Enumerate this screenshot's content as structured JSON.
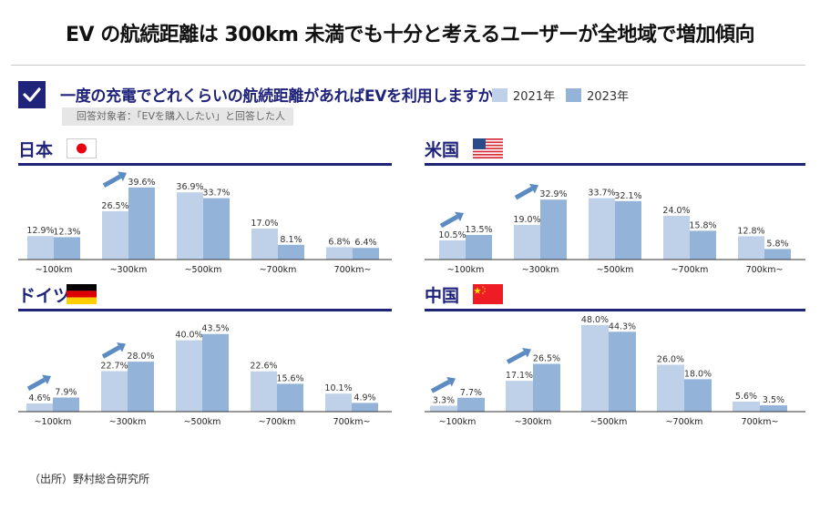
{
  "title": "EV の航続距離は 300km 未満でも十分と考えるユーザーが全地域で増加傾向",
  "question": "一度の充電でどれくらいの航続距離があればEVを利用しますか？",
  "respondents_note": "回答対象者：「EVを購入したい」と回答した人",
  "source": "（出所）野村総合研究所",
  "legend": [
    {
      "label": "2021年",
      "color": "#bfd1e8"
    },
    {
      "label": "2023年",
      "color": "#94b3d8"
    }
  ],
  "colors": {
    "accent": "#1f237a",
    "arrow": "#5b8bc2",
    "series_2021": "#bfd1e8",
    "series_2023": "#94b3d8"
  },
  "chart_data": [
    {
      "type": "bar",
      "title": "日本",
      "flag": "japan",
      "categories": [
        "~100km",
        "~300km",
        "~500km",
        "~700km",
        "700km~"
      ],
      "series": [
        {
          "name": "2021年",
          "values": [
            12.9,
            26.5,
            36.9,
            17.0,
            6.8
          ],
          "labels": [
            "12.9%",
            "26.5%",
            "36.9%",
            "17.0%",
            "6.8%"
          ]
        },
        {
          "name": "2023年",
          "values": [
            12.3,
            39.6,
            33.7,
            8.1,
            6.4
          ],
          "labels": [
            "12.3%",
            "39.6%",
            "33.7%",
            "8.1%",
            "6.4%"
          ]
        }
      ],
      "increase_arrows": [
        "~300km"
      ],
      "ylim": [
        0,
        50
      ],
      "xlabel": "",
      "ylabel": "",
      "grid": false
    },
    {
      "type": "bar",
      "title": "米国",
      "flag": "usa",
      "categories": [
        "~100km",
        "~300km",
        "~500km",
        "~700km",
        "700km~"
      ],
      "series": [
        {
          "name": "2021年",
          "values": [
            10.5,
            19.0,
            33.7,
            24.0,
            12.8
          ],
          "labels": [
            "10.5%",
            "19.0%",
            "33.7%",
            "24.0%",
            "12.8%"
          ]
        },
        {
          "name": "2023年",
          "values": [
            13.5,
            32.9,
            32.1,
            15.8,
            5.8
          ],
          "labels": [
            "13.5%",
            "32.9%",
            "32.1%",
            "15.8%",
            "5.8%"
          ]
        }
      ],
      "increase_arrows": [
        "~100km",
        "~300km"
      ],
      "ylim": [
        0,
        50
      ],
      "xlabel": "",
      "ylabel": "",
      "grid": false
    },
    {
      "type": "bar",
      "title": "ドイツ",
      "flag": "germany",
      "categories": [
        "~100km",
        "~300km",
        "~500km",
        "~700km",
        "700km~"
      ],
      "series": [
        {
          "name": "2021年",
          "values": [
            4.6,
            22.7,
            40.0,
            22.6,
            10.1
          ],
          "labels": [
            "4.6%",
            "22.7%",
            "40.0%",
            "22.6%",
            "10.1%"
          ]
        },
        {
          "name": "2023年",
          "values": [
            7.9,
            28.0,
            43.5,
            15.6,
            4.9
          ],
          "labels": [
            "7.9%",
            "28.0%",
            "43.5%",
            "15.6%",
            "4.9%"
          ]
        }
      ],
      "increase_arrows": [
        "~100km",
        "~300km"
      ],
      "ylim": [
        0,
        50
      ],
      "xlabel": "",
      "ylabel": "",
      "grid": false
    },
    {
      "type": "bar",
      "title": "中国",
      "flag": "china",
      "categories": [
        "~100km",
        "~300km",
        "~500km",
        "~700km",
        "700km~"
      ],
      "series": [
        {
          "name": "2021年",
          "values": [
            3.3,
            17.1,
            48.0,
            26.0,
            5.6
          ],
          "labels": [
            "3.3%",
            "17.1%",
            "48.0%",
            "26.0%",
            "5.6%"
          ]
        },
        {
          "name": "2023年",
          "values": [
            7.7,
            26.5,
            44.3,
            18.0,
            3.5
          ],
          "labels": [
            "7.7%",
            "26.5%",
            "44.3%",
            "18.0%",
            "3.5%"
          ]
        }
      ],
      "increase_arrows": [
        "~100km",
        "~300km"
      ],
      "ylim": [
        0,
        50
      ],
      "xlabel": "",
      "ylabel": "",
      "grid": false
    }
  ]
}
